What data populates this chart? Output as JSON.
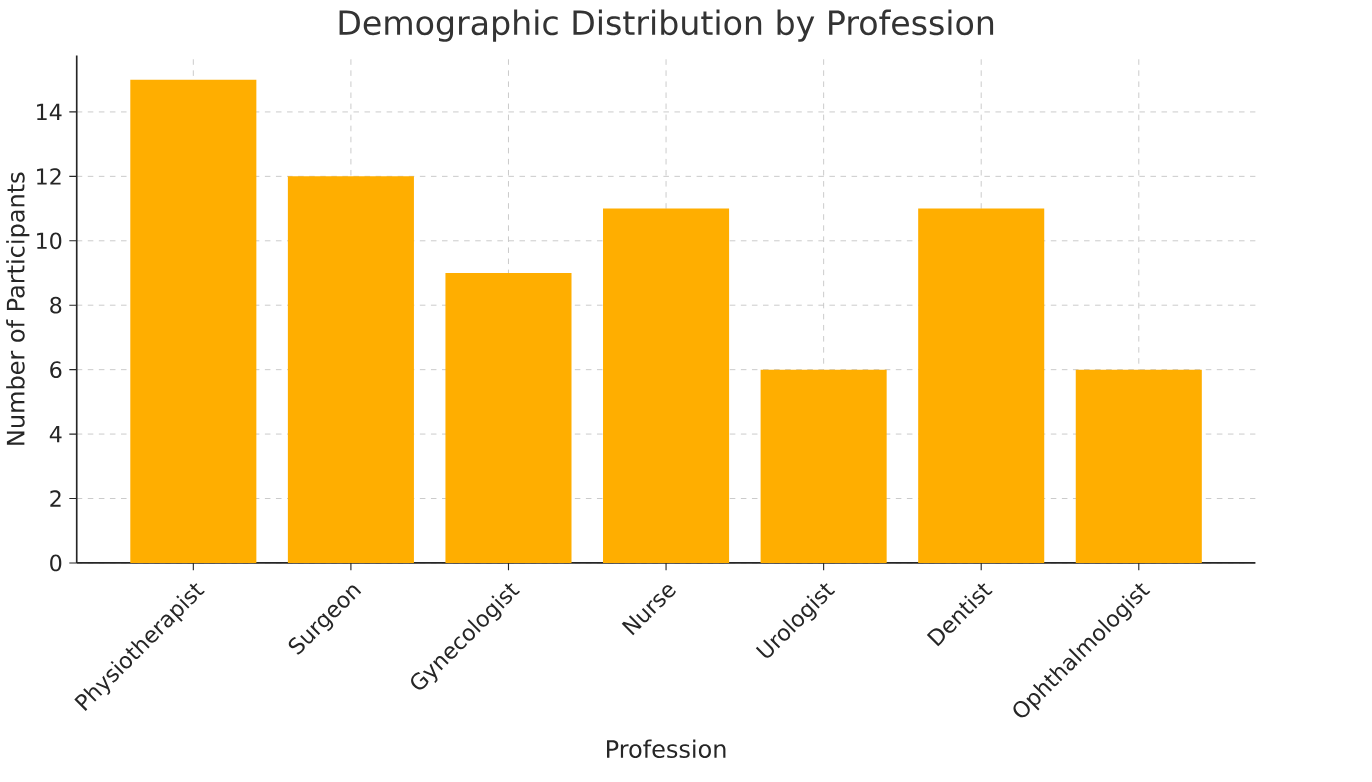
{
  "chart_data": {
    "type": "bar",
    "title": "Demographic Distribution by Profession",
    "xlabel": "Profession",
    "ylabel": "Number of Participants",
    "categories": [
      "Physiotherapist",
      "Surgeon",
      "Gynecologist",
      "Nurse",
      "Urologist",
      "Dentist",
      "Ophthalmologist"
    ],
    "values": [
      15,
      12,
      9,
      11,
      6,
      11,
      6
    ],
    "color": "#ffae00",
    "ylim": [
      0,
      15.75
    ],
    "yticks": [
      0,
      2,
      4,
      6,
      8,
      10,
      12,
      14
    ],
    "grid": true
  }
}
